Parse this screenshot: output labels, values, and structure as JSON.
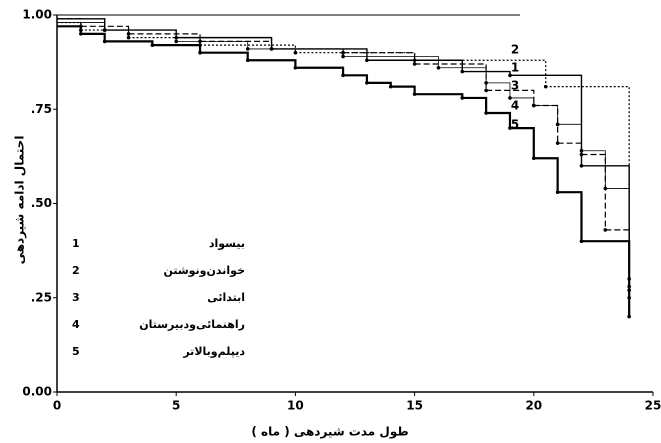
{
  "chart_data": {
    "type": "step",
    "x_label": "طول مدت شیردهی ( ماه )",
    "y_label": "احتمال ادامه شیردهی",
    "xlim": [
      0,
      25
    ],
    "xticks": [
      0,
      5,
      10,
      15,
      20,
      25
    ],
    "ylim": [
      0,
      1
    ],
    "yticks": [
      {
        "value": 0,
        "label": "0.00"
      },
      {
        "value": 0.25,
        "label": ".25"
      },
      {
        "value": 0.5,
        "label": ".50"
      },
      {
        "value": 0.75,
        "label": ".75"
      },
      {
        "value": 1,
        "label": "1.00"
      }
    ],
    "series": [
      {
        "number": "1",
        "name": "بیسواد",
        "color": "#000000",
        "width": 1.4,
        "dash": "none",
        "x": [
          0,
          2,
          5,
          9,
          13,
          17,
          19,
          22,
          24
        ],
        "values": [
          0.99,
          0.96,
          0.94,
          0.91,
          0.88,
          0.85,
          0.84,
          0.6,
          0.28
        ]
      },
      {
        "number": "2",
        "name": "خواندن‌ونوشتن",
        "color": "#000000",
        "width": 1.2,
        "dash": "2,2",
        "x": [
          0,
          1,
          3,
          6,
          10,
          15,
          20.5,
          24
        ],
        "values": [
          0.98,
          0.96,
          0.94,
          0.92,
          0.9,
          0.88,
          0.81,
          0.25
        ]
      },
      {
        "number": "3",
        "name": "ابتدائی",
        "color": "#000000",
        "width": 0.8,
        "dash": "none",
        "x": [
          0,
          2,
          5,
          8,
          12,
          16,
          18,
          19,
          20,
          21,
          22,
          23,
          24
        ],
        "values": [
          0.98,
          0.96,
          0.93,
          0.91,
          0.89,
          0.86,
          0.82,
          0.78,
          0.76,
          0.71,
          0.64,
          0.54,
          0.3
        ]
      },
      {
        "number": "4",
        "name": "راهنمائی‌ودبیرستان",
        "color": "#000000",
        "width": 1.2,
        "dash": "6,3",
        "x": [
          0,
          1,
          3,
          6,
          9,
          12,
          15,
          18,
          20,
          21,
          22,
          23,
          24
        ],
        "values": [
          0.99,
          0.97,
          0.95,
          0.93,
          0.91,
          0.9,
          0.87,
          0.8,
          0.76,
          0.66,
          0.63,
          0.43,
          0.27
        ]
      },
      {
        "number": "5",
        "name": "دیپلم‌وبالاتر",
        "color": "#000000",
        "width": 2.2,
        "dash": "none",
        "x": [
          0,
          1,
          2,
          4,
          6,
          8,
          10,
          12,
          13,
          14,
          15,
          17,
          18,
          19,
          20,
          21,
          22,
          24
        ],
        "values": [
          0.97,
          0.95,
          0.93,
          0.92,
          0.9,
          0.88,
          0.86,
          0.84,
          0.82,
          0.81,
          0.79,
          0.78,
          0.74,
          0.7,
          0.62,
          0.53,
          0.4,
          0.2
        ]
      }
    ]
  }
}
